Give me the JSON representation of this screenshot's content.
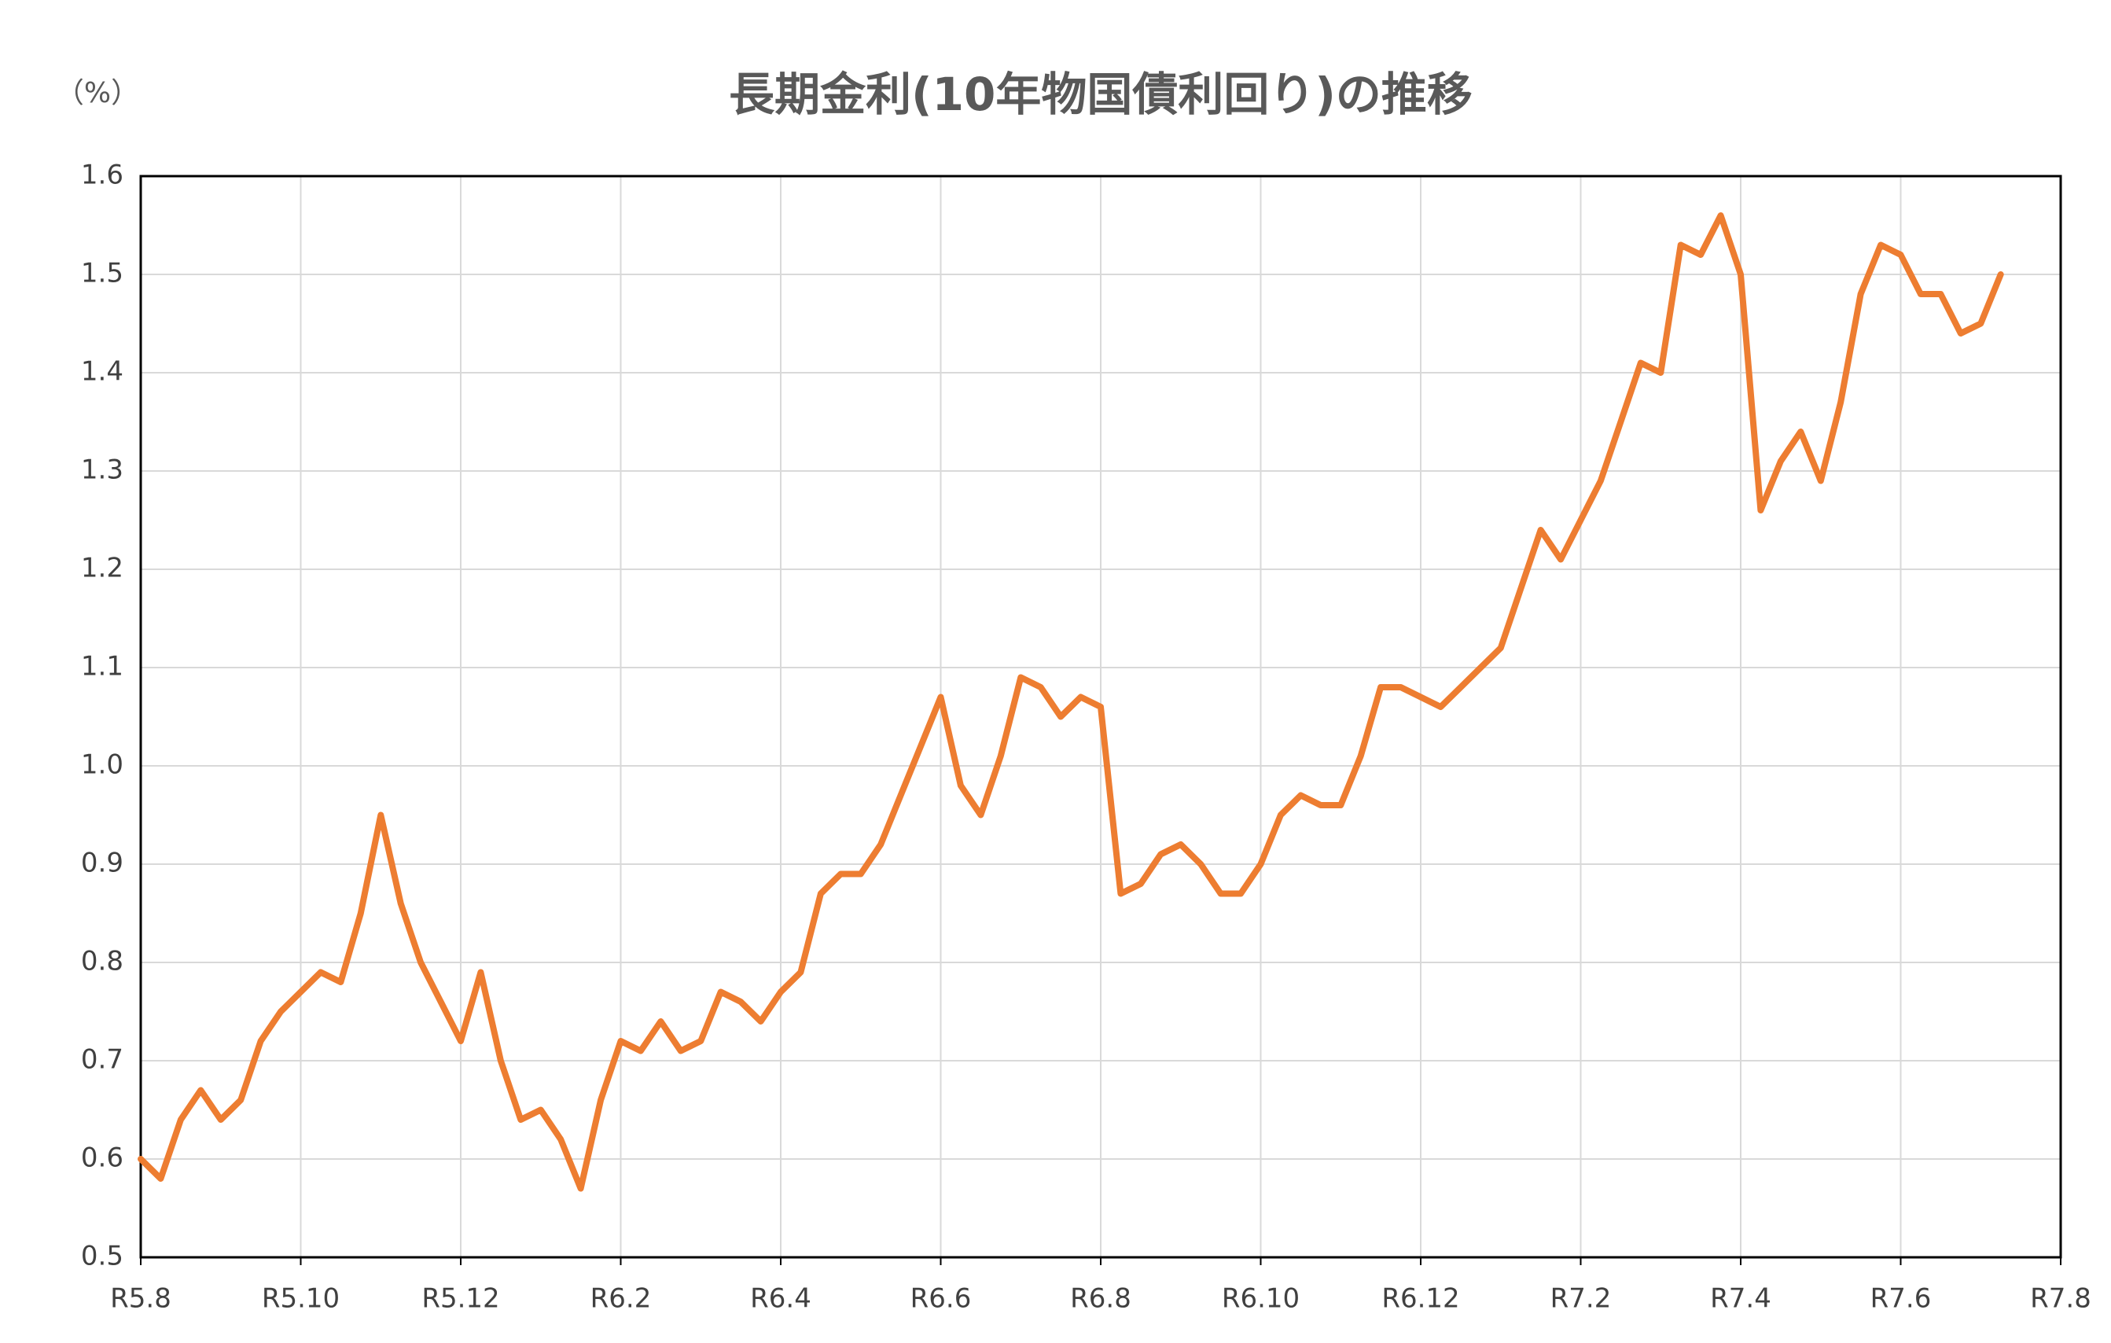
{
  "chart_data": {
    "type": "line",
    "title": "長期金利(10年物国債利回り)の推移",
    "y_unit": "（%）",
    "color": "#ed7d31",
    "grid": true,
    "categories": [
      "R5.8",
      null,
      null,
      null,
      null,
      null,
      null,
      null,
      "R5.10",
      null,
      null,
      null,
      null,
      null,
      null,
      null,
      "R5.12",
      null,
      null,
      null,
      null,
      null,
      null,
      null,
      "R6.2",
      null,
      null,
      null,
      null,
      null,
      null,
      null,
      "R6.4",
      null,
      null,
      null,
      null,
      null,
      null,
      null,
      "R6.6",
      null,
      null,
      null,
      null,
      null,
      null,
      null,
      "R6.8",
      null,
      null,
      null,
      null,
      null,
      null,
      null,
      "R6.10",
      null,
      null,
      null,
      null,
      null,
      null,
      null,
      "R6.12",
      null,
      null,
      null,
      null,
      null,
      null,
      null,
      "R7.2",
      null,
      null,
      null,
      null,
      null,
      null,
      null,
      "R7.4",
      null,
      null,
      null,
      null,
      null,
      null,
      null,
      "R7.6",
      null,
      null,
      null,
      null,
      null,
      null,
      null,
      "R7.8"
    ],
    "values": [
      0.6,
      0.58,
      0.64,
      0.67,
      0.64,
      0.66,
      0.72,
      0.75,
      0.77,
      0.79,
      0.78,
      0.85,
      0.95,
      0.86,
      0.8,
      0.76,
      0.72,
      0.79,
      0.7,
      0.64,
      0.65,
      0.62,
      0.57,
      0.66,
      0.72,
      0.71,
      0.74,
      0.71,
      0.72,
      0.77,
      0.76,
      0.74,
      0.77,
      0.79,
      0.87,
      0.89,
      0.89,
      0.92,
      0.97,
      1.02,
      1.07,
      0.98,
      0.95,
      1.01,
      1.09,
      1.08,
      1.05,
      1.07,
      1.06,
      0.87,
      0.88,
      0.91,
      0.92,
      0.9,
      0.87,
      0.87,
      0.9,
      0.95,
      0.97,
      0.96,
      0.96,
      1.01,
      1.08,
      1.08,
      1.07,
      1.06,
      1.08,
      1.1,
      1.12,
      1.18,
      1.24,
      1.21,
      1.25,
      1.29,
      1.35,
      1.41,
      1.4,
      1.53,
      1.52,
      1.56,
      1.5,
      1.26,
      1.31,
      1.34,
      1.29,
      1.37,
      1.48,
      1.53,
      1.52,
      1.48,
      1.48,
      1.44,
      1.45,
      1.5,
      null,
      null,
      null
    ],
    "ylim": [
      0.5,
      1.6
    ],
    "yticks": [
      0.5,
      0.6,
      0.7,
      0.8,
      0.9,
      {
        "value": 1,
        "label": "1.0"
      },
      1.1,
      1.2,
      1.3,
      1.4,
      1.5,
      1.6
    ]
  }
}
